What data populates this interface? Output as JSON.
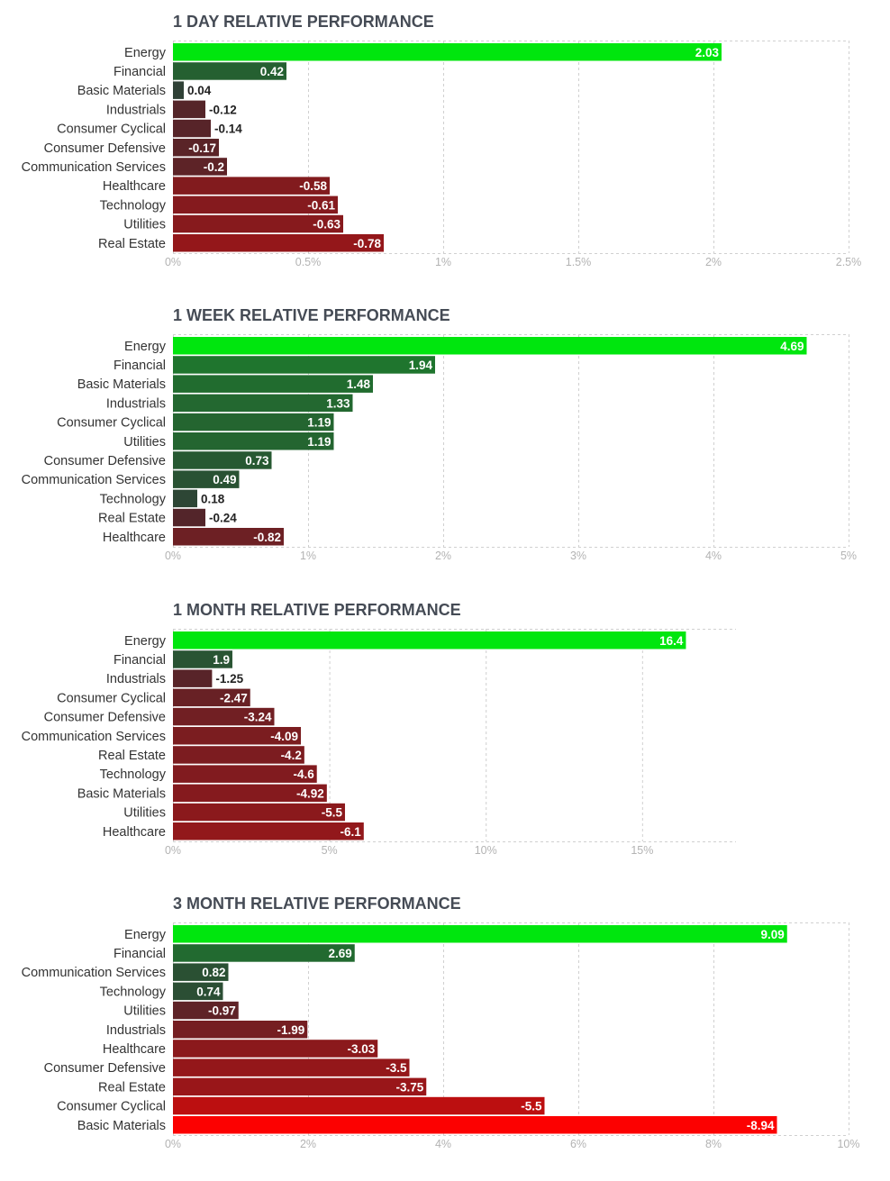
{
  "chart_data": [
    {
      "type": "bar",
      "orientation": "horizontal",
      "title": "1 DAY RELATIVE PERFORMANCE",
      "categories": [
        "Energy",
        "Financial",
        "Basic Materials",
        "Industrials",
        "Consumer Cyclical",
        "Consumer Defensive",
        "Communication Services",
        "Healthcare",
        "Technology",
        "Utilities",
        "Real Estate"
      ],
      "values": [
        2.03,
        0.42,
        0.04,
        -0.12,
        -0.14,
        -0.17,
        -0.2,
        -0.58,
        -0.61,
        -0.63,
        -0.78
      ],
      "value_labels": [
        "2.03",
        "0.42",
        "0.04",
        "-0.12",
        "-0.14",
        "-0.17",
        "-0.2",
        "-0.58",
        "-0.61",
        "-0.63",
        "-0.78"
      ],
      "xlim": [
        0,
        2.5
      ],
      "ticks": [
        0,
        0.5,
        1,
        1.5,
        2,
        2.5
      ],
      "tick_labels": [
        "0%",
        "0.5%",
        "1%",
        "1.5%",
        "2%",
        "2.5%"
      ],
      "xlabel": "",
      "ylabel": "",
      "grid": true
    },
    {
      "type": "bar",
      "orientation": "horizontal",
      "title": "1 WEEK RELATIVE PERFORMANCE",
      "categories": [
        "Energy",
        "Financial",
        "Basic Materials",
        "Industrials",
        "Consumer Cyclical",
        "Utilities",
        "Consumer Defensive",
        "Communication Services",
        "Technology",
        "Real Estate",
        "Healthcare"
      ],
      "values": [
        4.69,
        1.94,
        1.48,
        1.33,
        1.19,
        1.19,
        0.73,
        0.49,
        0.18,
        -0.24,
        -0.82
      ],
      "value_labels": [
        "4.69",
        "1.94",
        "1.48",
        "1.33",
        "1.19",
        "1.19",
        "0.73",
        "0.49",
        "0.18",
        "-0.24",
        "-0.82"
      ],
      "xlim": [
        0,
        5
      ],
      "ticks": [
        0,
        1,
        2,
        3,
        4,
        5
      ],
      "tick_labels": [
        "0%",
        "1%",
        "2%",
        "3%",
        "4%",
        "5%"
      ],
      "xlabel": "",
      "ylabel": "",
      "grid": true
    },
    {
      "type": "bar",
      "orientation": "horizontal",
      "title": "1 MONTH RELATIVE PERFORMANCE",
      "categories": [
        "Energy",
        "Financial",
        "Industrials",
        "Consumer Cyclical",
        "Consumer Defensive",
        "Communication Services",
        "Real Estate",
        "Technology",
        "Basic Materials",
        "Utilities",
        "Healthcare"
      ],
      "values": [
        16.4,
        1.9,
        -1.25,
        -2.47,
        -3.24,
        -4.09,
        -4.2,
        -4.6,
        -4.92,
        -5.5,
        -6.1
      ],
      "value_labels": [
        "16.4",
        "1.9",
        "-1.25",
        "-2.47",
        "-3.24",
        "-4.09",
        "-4.2",
        "-4.6",
        "-4.92",
        "-5.5",
        "-6.1"
      ],
      "xlim": [
        0,
        18
      ],
      "ticks": [
        0,
        5,
        10,
        15
      ],
      "tick_labels": [
        "0%",
        "5%",
        "10%",
        "15%"
      ],
      "xlabel": "",
      "ylabel": "",
      "grid": true
    },
    {
      "type": "bar",
      "orientation": "horizontal",
      "title": "3 MONTH RELATIVE PERFORMANCE",
      "categories": [
        "Energy",
        "Financial",
        "Communication Services",
        "Technology",
        "Utilities",
        "Industrials",
        "Healthcare",
        "Consumer Defensive",
        "Real Estate",
        "Consumer Cyclical",
        "Basic Materials"
      ],
      "values": [
        9.09,
        2.69,
        0.82,
        0.74,
        -0.97,
        -1.99,
        -3.03,
        -3.5,
        -3.75,
        -5.5,
        -8.94
      ],
      "value_labels": [
        "9.09",
        "2.69",
        "0.82",
        "0.74",
        "-0.97",
        "-1.99",
        "-3.03",
        "-3.5",
        "-3.75",
        "-5.5",
        "-8.94"
      ],
      "xlim": [
        0,
        10
      ],
      "ticks": [
        0,
        2,
        4,
        6,
        8,
        10
      ],
      "tick_labels": [
        "0%",
        "2%",
        "4%",
        "6%",
        "8%",
        "10%"
      ],
      "xlabel": "",
      "ylabel": "",
      "grid": true
    }
  ],
  "colors": {
    "title": "#454b55",
    "category_text": "#333333",
    "tick_text": "#b3b3b3",
    "grid": "#d0d0d0",
    "value_text_light": "#ffffff",
    "value_text_dark": "#222222"
  }
}
